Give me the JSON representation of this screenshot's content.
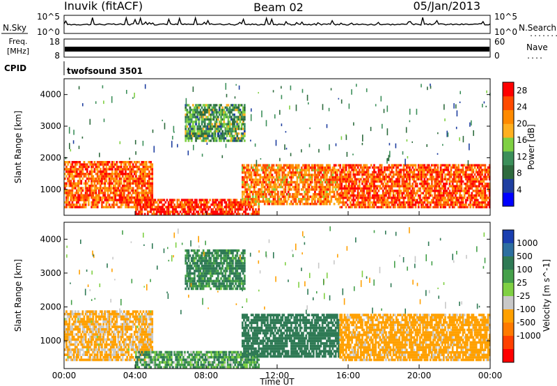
{
  "header": {
    "station": "Inuvik (fitACF)",
    "beam": "Beam 02",
    "date": "05/Jan/2013"
  },
  "side_labels": {
    "nsky": "N.Sky",
    "nsearch": "N.Search",
    "nsearch_dots": "........",
    "freq_line1": "Freq.",
    "freq_line2": "[MHz]",
    "nave": "Nave",
    "nave_dots": "....",
    "cpid": "CPID",
    "cpid_value": "twofsound 3501"
  },
  "colors": {
    "power_scale": [
      "#0000ff",
      "#1f3fa0",
      "#2e6b3e",
      "#3c8f5a",
      "#7fd043",
      "#ffb020",
      "#ff8a00",
      "#ff4a00",
      "#ff0000"
    ],
    "velocity_scale": [
      "#1a3fb0",
      "#2d6fa0",
      "#2f7a55",
      "#45a04a",
      "#7fd043",
      "#c8c8c8",
      "#ffa000",
      "#ff7a00",
      "#ff4000",
      "#ff0000"
    ],
    "noise_trace": "#000000"
  },
  "chart_data": [
    {
      "type": "line",
      "title": "N.Sky / N.Search",
      "left_ticks": [
        "10^5",
        "10^0"
      ],
      "right_ticks": [
        "10^5",
        "10^0"
      ],
      "x_range": [
        "00:00",
        "24:00"
      ]
    },
    {
      "type": "line",
      "title": "Freq. [MHz] / Nave",
      "left_ticks": [
        "18",
        "8"
      ],
      "right_ticks": [
        "60",
        "0"
      ],
      "freq_mhz": 11,
      "x_range": [
        "00:00",
        "24:00"
      ]
    },
    {
      "type": "heatmap",
      "quantity": "Power",
      "ylabel": "Slant Range [km]",
      "y_ticks": [
        1000,
        2000,
        3000,
        4000
      ],
      "ylim": [
        180,
        4500
      ],
      "colorbar_label": "Power [dB]",
      "colorbar_ticks": [
        4,
        8,
        12,
        16,
        20,
        24,
        28
      ],
      "colorbar_range": [
        0,
        30
      ],
      "echo_regions": [
        {
          "start_h": 0.0,
          "end_h": 5.0,
          "range_low_km": 400,
          "range_high_km": 1900,
          "value": 24
        },
        {
          "start_h": 4.0,
          "end_h": 11.0,
          "range_low_km": 180,
          "range_high_km": 700,
          "value": 27
        },
        {
          "start_h": 6.8,
          "end_h": 10.2,
          "range_low_km": 2500,
          "range_high_km": 3700,
          "value": 12
        },
        {
          "start_h": 10.0,
          "end_h": 15.5,
          "range_low_km": 500,
          "range_high_km": 1800,
          "value": 22
        },
        {
          "start_h": 15.5,
          "end_h": 24.0,
          "range_low_km": 400,
          "range_high_km": 1800,
          "value": 25
        }
      ]
    },
    {
      "type": "heatmap",
      "quantity": "Velocity",
      "ylabel": "Slant Range [km]",
      "xlabel": "Time UT",
      "x_ticks": [
        "00:00",
        "04:00",
        "08:00",
        "12:00",
        "16:00",
        "20:00",
        "00:00"
      ],
      "y_ticks": [
        1000,
        2000,
        3000,
        4000
      ],
      "ylim": [
        180,
        4500
      ],
      "colorbar_label": "Velocity [m s^-1]",
      "colorbar_ticks": [
        1000,
        500,
        100,
        25,
        -25,
        -100,
        -500,
        -1000
      ],
      "echo_regions": [
        {
          "start_h": 0.0,
          "end_h": 5.0,
          "range_low_km": 400,
          "range_high_km": 1900,
          "value": -150
        },
        {
          "start_h": 4.0,
          "end_h": 11.0,
          "range_low_km": 180,
          "range_high_km": 700,
          "value": 80
        },
        {
          "start_h": 6.8,
          "end_h": 10.2,
          "range_low_km": 2500,
          "range_high_km": 3700,
          "value": 150
        },
        {
          "start_h": 10.0,
          "end_h": 15.5,
          "range_low_km": 500,
          "range_high_km": 1800,
          "value": 300
        },
        {
          "start_h": 15.5,
          "end_h": 24.0,
          "range_low_km": 400,
          "range_high_km": 1800,
          "value": -200
        }
      ]
    }
  ]
}
